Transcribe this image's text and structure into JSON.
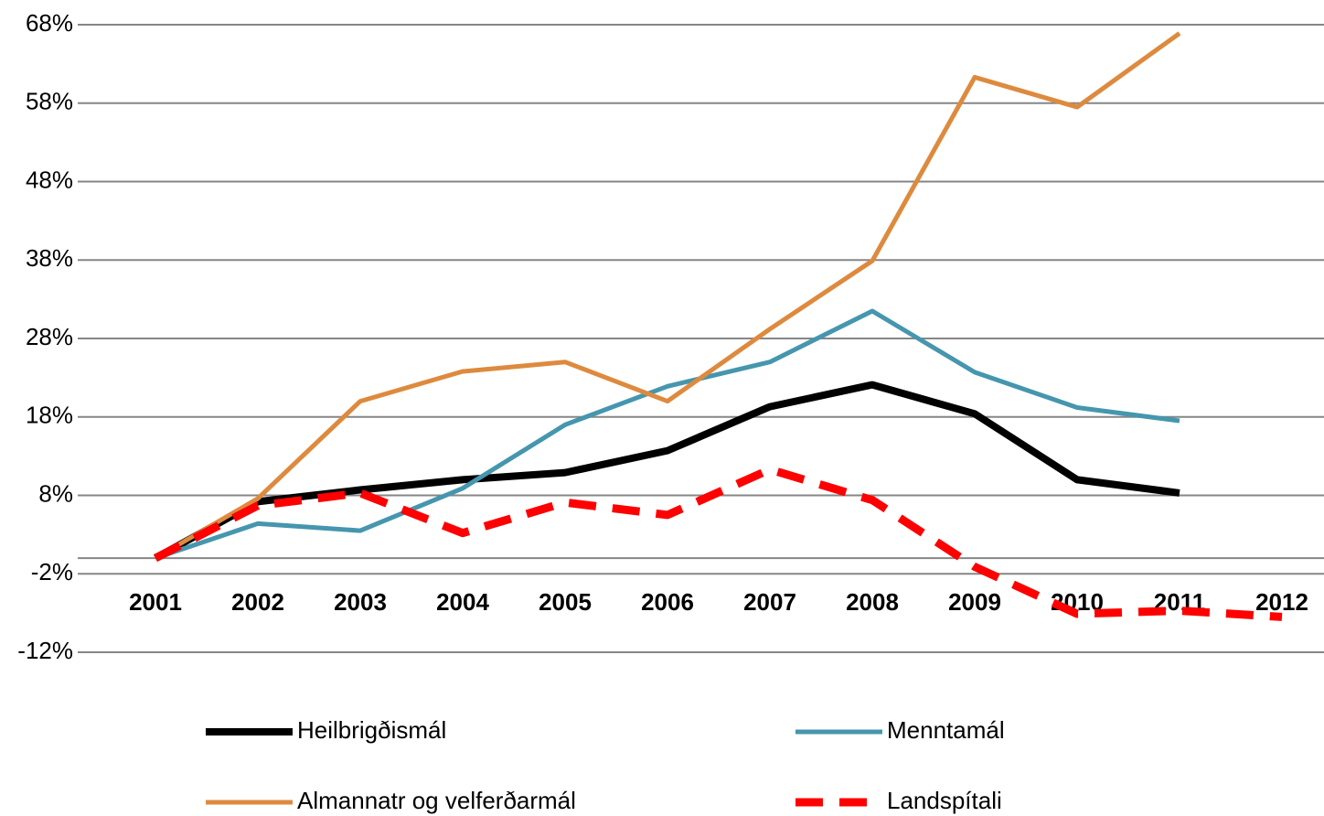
{
  "chart_data": {
    "type": "line",
    "categories": [
      "2001",
      "2002",
      "2003",
      "2004",
      "2005",
      "2006",
      "2007",
      "2008",
      "2009",
      "2010",
      "2011",
      "2012"
    ],
    "series": [
      {
        "name": "Heilbrigðismál",
        "color": "#000000",
        "dash": false,
        "values": [
          0,
          7.2,
          8.7,
          10,
          10.9,
          13.7,
          19.3,
          22.1,
          18.4,
          10,
          8.3,
          null
        ]
      },
      {
        "name": "Menntamál",
        "color": "#4596ae",
        "dash": false,
        "values": [
          0,
          4.4,
          3.5,
          8.9,
          17,
          21.9,
          25,
          31.5,
          23.7,
          19.2,
          17.5,
          null
        ]
      },
      {
        "name": "Almannatr og velferðarmál",
        "color": "#de8a3e",
        "dash": false,
        "values": [
          0,
          7.6,
          20,
          23.8,
          25,
          20,
          29.2,
          37.9,
          61.3,
          57.5,
          66.9,
          null
        ]
      },
      {
        "name": "Landspítali",
        "color": "#ff0000",
        "dash": true,
        "values": [
          0,
          6.7,
          8.3,
          3.2,
          7.1,
          5.5,
          11.3,
          7.4,
          -1.1,
          -7.1,
          -6.7,
          -7.5
        ]
      }
    ],
    "ylim": [
      -12,
      68
    ],
    "yticks": [
      {
        "value": -12,
        "label": "-12%"
      },
      {
        "value": -2,
        "label": "-2%"
      },
      {
        "value": 8,
        "label": "8%"
      },
      {
        "value": 18,
        "label": "18%"
      },
      {
        "value": 28,
        "label": "28%"
      },
      {
        "value": 38,
        "label": "38%"
      },
      {
        "value": 48,
        "label": "48%"
      },
      {
        "value": 58,
        "label": "58%"
      },
      {
        "value": 68,
        "label": "68%"
      }
    ],
    "grid": true
  }
}
